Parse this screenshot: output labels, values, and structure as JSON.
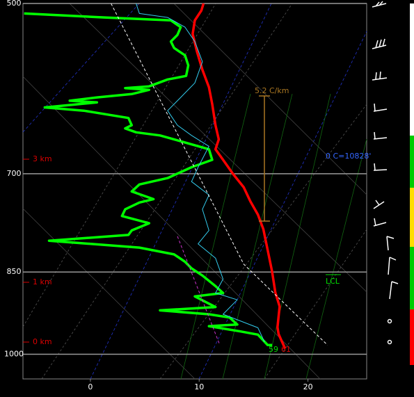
{
  "chart_data": {
    "type": "sounding",
    "xlim": [
      -6.2,
      25.4
    ],
    "xticks": [
      0,
      10,
      20
    ],
    "ylim": [
      1050,
      500
    ],
    "yticks": [
      500,
      700,
      850,
      1000
    ],
    "ylog": true,
    "grid": true,
    "series": [
      {
        "color": "#ff0000",
        "style": "thick",
        "x": [
          10.4,
          10.2,
          9.6,
          9.4,
          9.8,
          10.3,
          10.9,
          11.2,
          11.5,
          11.8,
          11.5,
          12.2,
          13.1,
          14.1,
          14.7,
          15.4,
          15.9,
          16.3,
          16.7,
          17.0,
          17.4,
          17.3,
          17.2,
          17.3,
          17.6,
          17.9
        ],
        "values": [
          500,
          507,
          517,
          531,
          550,
          570,
          590,
          610,
          636,
          654,
          667,
          681,
          700,
          719,
          739,
          759,
          781,
          814,
          849,
          885,
          910,
          928,
          948,
          961,
          975,
          989
        ]
      },
      {
        "color": "#00ff00",
        "style": "thick",
        "x": [
          -6.1,
          1.3,
          7.4,
          8.3,
          8.0,
          7.4,
          7.7,
          8.7,
          9.0,
          8.8,
          7.1,
          5.4,
          3.2,
          5.4,
          3.8,
          0.6,
          -1.9,
          0.6,
          -4.2,
          -0.6,
          3.5,
          3.8,
          3.2,
          4.2,
          6.4,
          8.7,
          10.9,
          11.2,
          9.3,
          7.1,
          4.5,
          3.8,
          5.8,
          4.5,
          3.2,
          2.9,
          5.4,
          3.8,
          3.5,
          -3.8,
          4.5,
          7.7,
          8.7,
          9.3,
          10.3,
          11.5,
          12.2,
          9.6,
          11.5,
          6.4,
          10.9,
          12.8,
          13.5,
          10.9,
          13.8,
          15.4,
          16.3,
          16.7
        ],
        "values": [
          510,
          514,
          517,
          524,
          532,
          539,
          546,
          554,
          565,
          577,
          581,
          589,
          591,
          593,
          598,
          602,
          606,
          608,
          614,
          618,
          627,
          636,
          640,
          645,
          649,
          658,
          667,
          681,
          691,
          706,
          715,
          725,
          736,
          741,
          751,
          761,
          772,
          783,
          790,
          799,
          810,
          821,
          833,
          844,
          856,
          874,
          886,
          892,
          911,
          917,
          924,
          930,
          943,
          946,
          956,
          962,
          982,
          982
        ]
      },
      {
        "color": "#33ccee",
        "style": "thin",
        "x": [
          4.2,
          4.5,
          7.1,
          8.7,
          9.6,
          10.3,
          9.6,
          8.3,
          7.1,
          8.0,
          9.3,
          10.9,
          9.9,
          9.3,
          10.9,
          10.3,
          10.9,
          9.9,
          11.5,
          12.2,
          11.5,
          13.5,
          12.2,
          15.4,
          16.0
        ],
        "values": [
          500,
          510,
          514,
          524,
          539,
          561,
          585,
          602,
          618,
          636,
          649,
          663,
          691,
          711,
          730,
          751,
          783,
          804,
          827,
          862,
          886,
          898,
          924,
          949,
          976
        ]
      },
      {
        "color": "#ffffff",
        "style": "dashed",
        "x": [
          1.9,
          14.1,
          21.8
        ],
        "values": [
          500,
          837,
          982
        ]
      },
      {
        "color": "#cc33cc",
        "style": "dashed",
        "x": [
          8.0,
          11.9
        ],
        "values": [
          792,
          982
        ]
      }
    ],
    "height_labels": [
      "3 km",
      "1 km",
      "0 km"
    ],
    "lapse_rate": "5.2 C/km",
    "freezing_level": "0 C=10828'",
    "lcl": "LCL",
    "surface_dewpoint": "59",
    "surface_temperature": "61"
  }
}
